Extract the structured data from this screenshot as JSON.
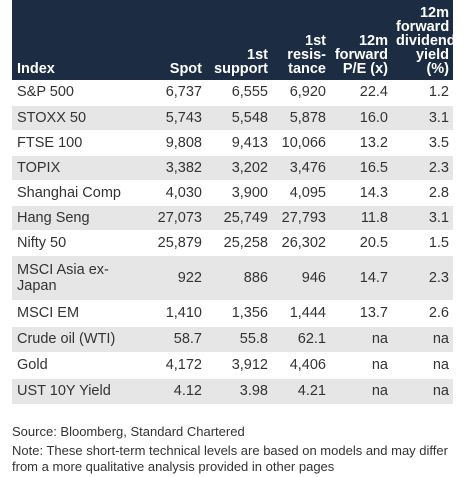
{
  "table": {
    "headers": {
      "index": "Index",
      "spot": "Spot",
      "support": [
        "1st",
        "support"
      ],
      "resistance": [
        "1st",
        "resis-",
        "tance"
      ],
      "pe": [
        "12m",
        "forward",
        "P/E (x)"
      ],
      "dividend": [
        "12m",
        "forward",
        "dividend",
        "yield (%)"
      ]
    },
    "rows": [
      {
        "index": "S&P 500",
        "spot": "6,737",
        "support": "6,555",
        "resistance": "6,920",
        "pe": "22.4",
        "dividend": "1.2"
      },
      {
        "index": "STOXX 50",
        "spot": "5,743",
        "support": "5,548",
        "resistance": "5,878",
        "pe": "16.0",
        "dividend": "3.1"
      },
      {
        "index": "FTSE 100",
        "spot": "9,808",
        "support": "9,413",
        "resistance": "10,066",
        "pe": "13.2",
        "dividend": "3.5"
      },
      {
        "index": "TOPIX",
        "spot": "3,382",
        "support": "3,202",
        "resistance": "3,476",
        "pe": "16.5",
        "dividend": "2.3"
      },
      {
        "index": "Shanghai Comp",
        "spot": "4,030",
        "support": "3,900",
        "resistance": "4,095",
        "pe": "14.3",
        "dividend": "2.8"
      },
      {
        "index": "Hang Seng",
        "spot": "27,073",
        "support": "25,749",
        "resistance": "27,793",
        "pe": "11.8",
        "dividend": "3.1"
      },
      {
        "index": "Nifty 50",
        "spot": "25,879",
        "support": "25,258",
        "resistance": "26,302",
        "pe": "20.5",
        "dividend": "1.5"
      },
      {
        "index": "MSCI Asia ex-Japan",
        "spot": "922",
        "support": "886",
        "resistance": "946",
        "pe": "14.7",
        "dividend": "2.3"
      },
      {
        "index": "MSCI EM",
        "spot": "1,410",
        "support": "1,356",
        "resistance": "1,444",
        "pe": "13.7",
        "dividend": "2.6"
      },
      {
        "index": "Crude oil (WTI)",
        "spot": "58.7",
        "support": "55.8",
        "resistance": "62.1",
        "pe": "na",
        "dividend": "na"
      },
      {
        "index": "Gold",
        "spot": "4,172",
        "support": "3,912",
        "resistance": "4,406",
        "pe": "na",
        "dividend": "na"
      },
      {
        "index": "UST 10Y Yield",
        "spot": "4.12",
        "support": "3.98",
        "resistance": "4.21",
        "pe": "na",
        "dividend": "na"
      }
    ]
  },
  "source": "Source: Bloomberg, Standard Chartered",
  "note": "Note: These short-term technical levels are based on models and may differ from a more qualitative analysis provided in other pages",
  "colors": {
    "header_bg": "#1c2d43",
    "header_text": "#ffffff",
    "alt_row_bg": "#e6e6e6",
    "body_text": "#333333"
  }
}
